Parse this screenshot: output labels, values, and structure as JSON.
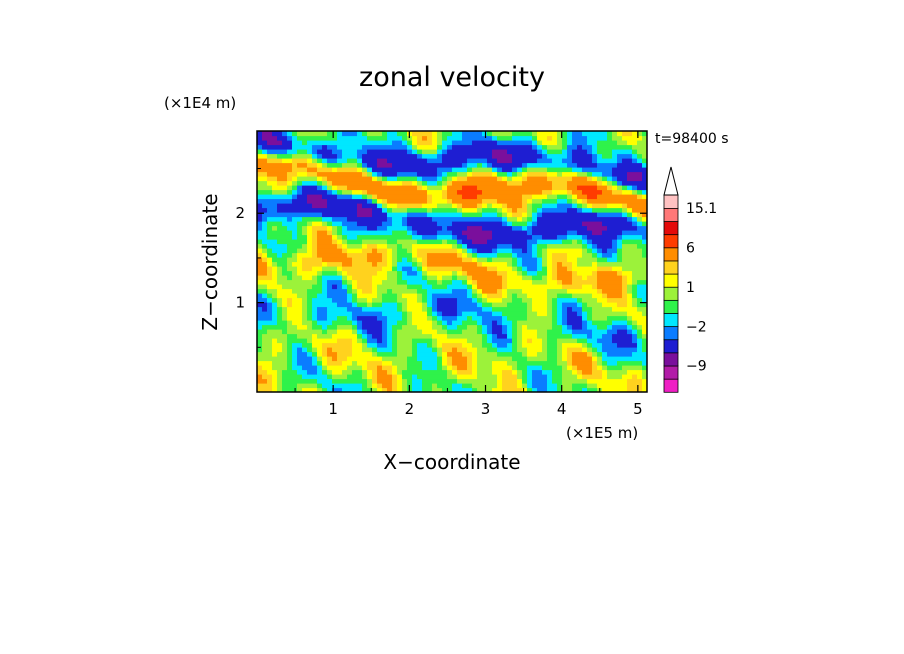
{
  "chart_data": {
    "type": "heatmap",
    "title": "zonal velocity",
    "xlabel": "X−coordinate",
    "ylabel": "Z−coordinate",
    "x_scale_label": "(×1E5 m)",
    "y_scale_label": "(×1E4 m)",
    "time_label": "t=98400 s",
    "xlim": [
      0,
      5.12
    ],
    "ylim": [
      0,
      2.92
    ],
    "x_ticks": [
      1,
      2,
      3,
      4,
      5
    ],
    "x_tick_labels": [
      "1",
      "2",
      "3",
      "4",
      "5"
    ],
    "y_ticks": [
      1,
      2
    ],
    "y_tick_labels": [
      "1",
      "2"
    ],
    "grid": false,
    "legend": "colorbar-right",
    "colorbar": {
      "levels": [
        -15,
        -12,
        -9,
        -6,
        -3,
        -2,
        -1,
        0,
        1,
        2,
        3,
        6,
        9,
        12,
        15.1
      ],
      "colors": [
        "#ef1fc4",
        "#b21ca8",
        "#7a0f9c",
        "#1e1ed2",
        "#0a7cff",
        "#00e7ff",
        "#2ff24a",
        "#9cf23a",
        "#ffff00",
        "#ffd21e",
        "#ff8d00",
        "#ff3c00",
        "#e40a0a",
        "#ff7878",
        "#ffc2c2"
      ],
      "over_color": "#ffffff",
      "tick_values": [
        15.1,
        6,
        1,
        -2,
        -9
      ],
      "tick_labels": [
        "15.1",
        "6",
        "1",
        "−2",
        "−9"
      ]
    },
    "field_bands": [
      {
        "z": 2.75,
        "value": -4.5,
        "note": "negative band near top"
      },
      {
        "z": 2.45,
        "value": 5.0,
        "note": "positive band"
      },
      {
        "z": 2.05,
        "value": -5.0,
        "note": "negative band"
      },
      {
        "z": 1.55,
        "value": 2.5
      },
      {
        "z": 1.0,
        "value": -1.5
      },
      {
        "z": 0.5,
        "value": 1.0
      }
    ]
  }
}
